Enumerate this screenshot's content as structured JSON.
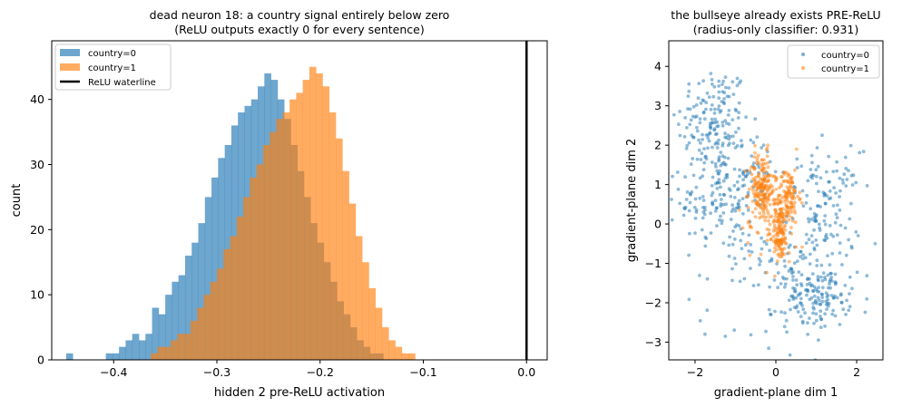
{
  "chart_data": [
    {
      "type": "histogram",
      "title": "dead neuron 18: a country signal entirely below zero",
      "subtitle": "(ReLU outputs exactly 0 for every sentence)",
      "xlabel": "hidden 2 pre-ReLU activation",
      "ylabel": "count",
      "xlim": [
        -0.46,
        0.02
      ],
      "ylim": [
        0,
        49
      ],
      "xticks": [
        -0.4,
        -0.3,
        -0.2,
        -0.1,
        0.0
      ],
      "xtick_labels": [
        "−0.4",
        "−0.3",
        "−0.2",
        "−0.1",
        "0.0"
      ],
      "yticks": [
        0,
        10,
        20,
        30,
        40
      ],
      "legend_position": "upper-left",
      "bin_width": 0.0064,
      "series": [
        {
          "name": "country=0",
          "color": "#1f77b4",
          "opacity": 0.65,
          "bin_start": -0.446,
          "counts": [
            1,
            0,
            0,
            0,
            0,
            0,
            1,
            1,
            2,
            3,
            4,
            3,
            4,
            8,
            7,
            10,
            12,
            13,
            16,
            18,
            21,
            25,
            28,
            31,
            33,
            36,
            38,
            39,
            40,
            42,
            44,
            43,
            40,
            37,
            33,
            29,
            25,
            21,
            18,
            15,
            12,
            9,
            7,
            5,
            3,
            2,
            1,
            1
          ]
        },
        {
          "name": "country=1",
          "color": "#ff7f0e",
          "opacity": 0.65,
          "bin_start": -0.364,
          "counts": [
            1,
            2,
            2,
            3,
            4,
            4,
            6,
            8,
            10,
            12,
            14,
            17,
            19,
            22,
            25,
            28,
            30,
            33,
            35,
            37,
            38,
            40,
            41,
            43,
            45,
            44,
            42,
            38,
            34,
            29,
            24,
            19,
            15,
            11,
            8,
            5,
            3,
            2,
            1,
            1
          ]
        }
      ],
      "vline": {
        "x": 0.0,
        "label": "ReLU waterline",
        "color": "#000000"
      }
    },
    {
      "type": "scatter",
      "title": "the bullseye already exists PRE-ReLU",
      "subtitle": "(radius-only classifier: 0.931)",
      "xlabel": "gradient-plane dim 1",
      "ylabel": "gradient-plane dim 2",
      "xlim": [
        -2.65,
        2.65
      ],
      "ylim": [
        -3.45,
        4.65
      ],
      "xticks": [
        -2,
        0,
        2
      ],
      "xtick_labels": [
        "−2",
        "0",
        "2"
      ],
      "yticks": [
        -3,
        -2,
        -1,
        0,
        1,
        2,
        3,
        4
      ],
      "ytick_labels": [
        "−3",
        "−2",
        "−1",
        "0",
        "1",
        "2",
        "3",
        "4"
      ],
      "legend_position": "upper-right",
      "series": [
        {
          "name": "country=0",
          "color": "#1f77b4",
          "opacity": 0.5,
          "clusters": [
            {
              "cx": -1.55,
              "cy": 2.55,
              "sx": 0.45,
              "sy": 0.75,
              "n": 170
            },
            {
              "cx": -1.45,
              "cy": 0.6,
              "sx": 0.45,
              "sy": 0.6,
              "n": 120
            },
            {
              "cx": -0.55,
              "cy": 1.3,
              "sx": 0.35,
              "sy": 0.45,
              "n": 45
            },
            {
              "cx": 1.2,
              "cy": 0.35,
              "sx": 0.45,
              "sy": 0.75,
              "n": 140
            },
            {
              "cx": 1.05,
              "cy": -1.85,
              "sx": 0.4,
              "sy": 0.4,
              "n": 130
            },
            {
              "cx": 0.45,
              "cy": -1.2,
              "sx": 0.35,
              "sy": 0.4,
              "n": 40
            },
            {
              "cx": 0.0,
              "cy": -2.3,
              "sx": 0.9,
              "sy": 0.6,
              "n": 30
            },
            {
              "cx": -0.8,
              "cy": -0.8,
              "sx": 0.5,
              "sy": 0.5,
              "n": 35
            }
          ]
        },
        {
          "name": "country=1",
          "color": "#ff7f0e",
          "opacity": 0.5,
          "clusters": [
            {
              "cx": -0.35,
              "cy": 0.9,
              "sx": 0.16,
              "sy": 0.45,
              "n": 180
            },
            {
              "cx": 0.3,
              "cy": 0.7,
              "sx": 0.13,
              "sy": 0.35,
              "n": 110
            },
            {
              "cx": 0.1,
              "cy": -0.2,
              "sx": 0.1,
              "sy": 0.35,
              "n": 120
            },
            {
              "cx": 0.0,
              "cy": 0.3,
              "sx": 0.4,
              "sy": 0.8,
              "n": 50
            }
          ]
        }
      ]
    }
  ]
}
